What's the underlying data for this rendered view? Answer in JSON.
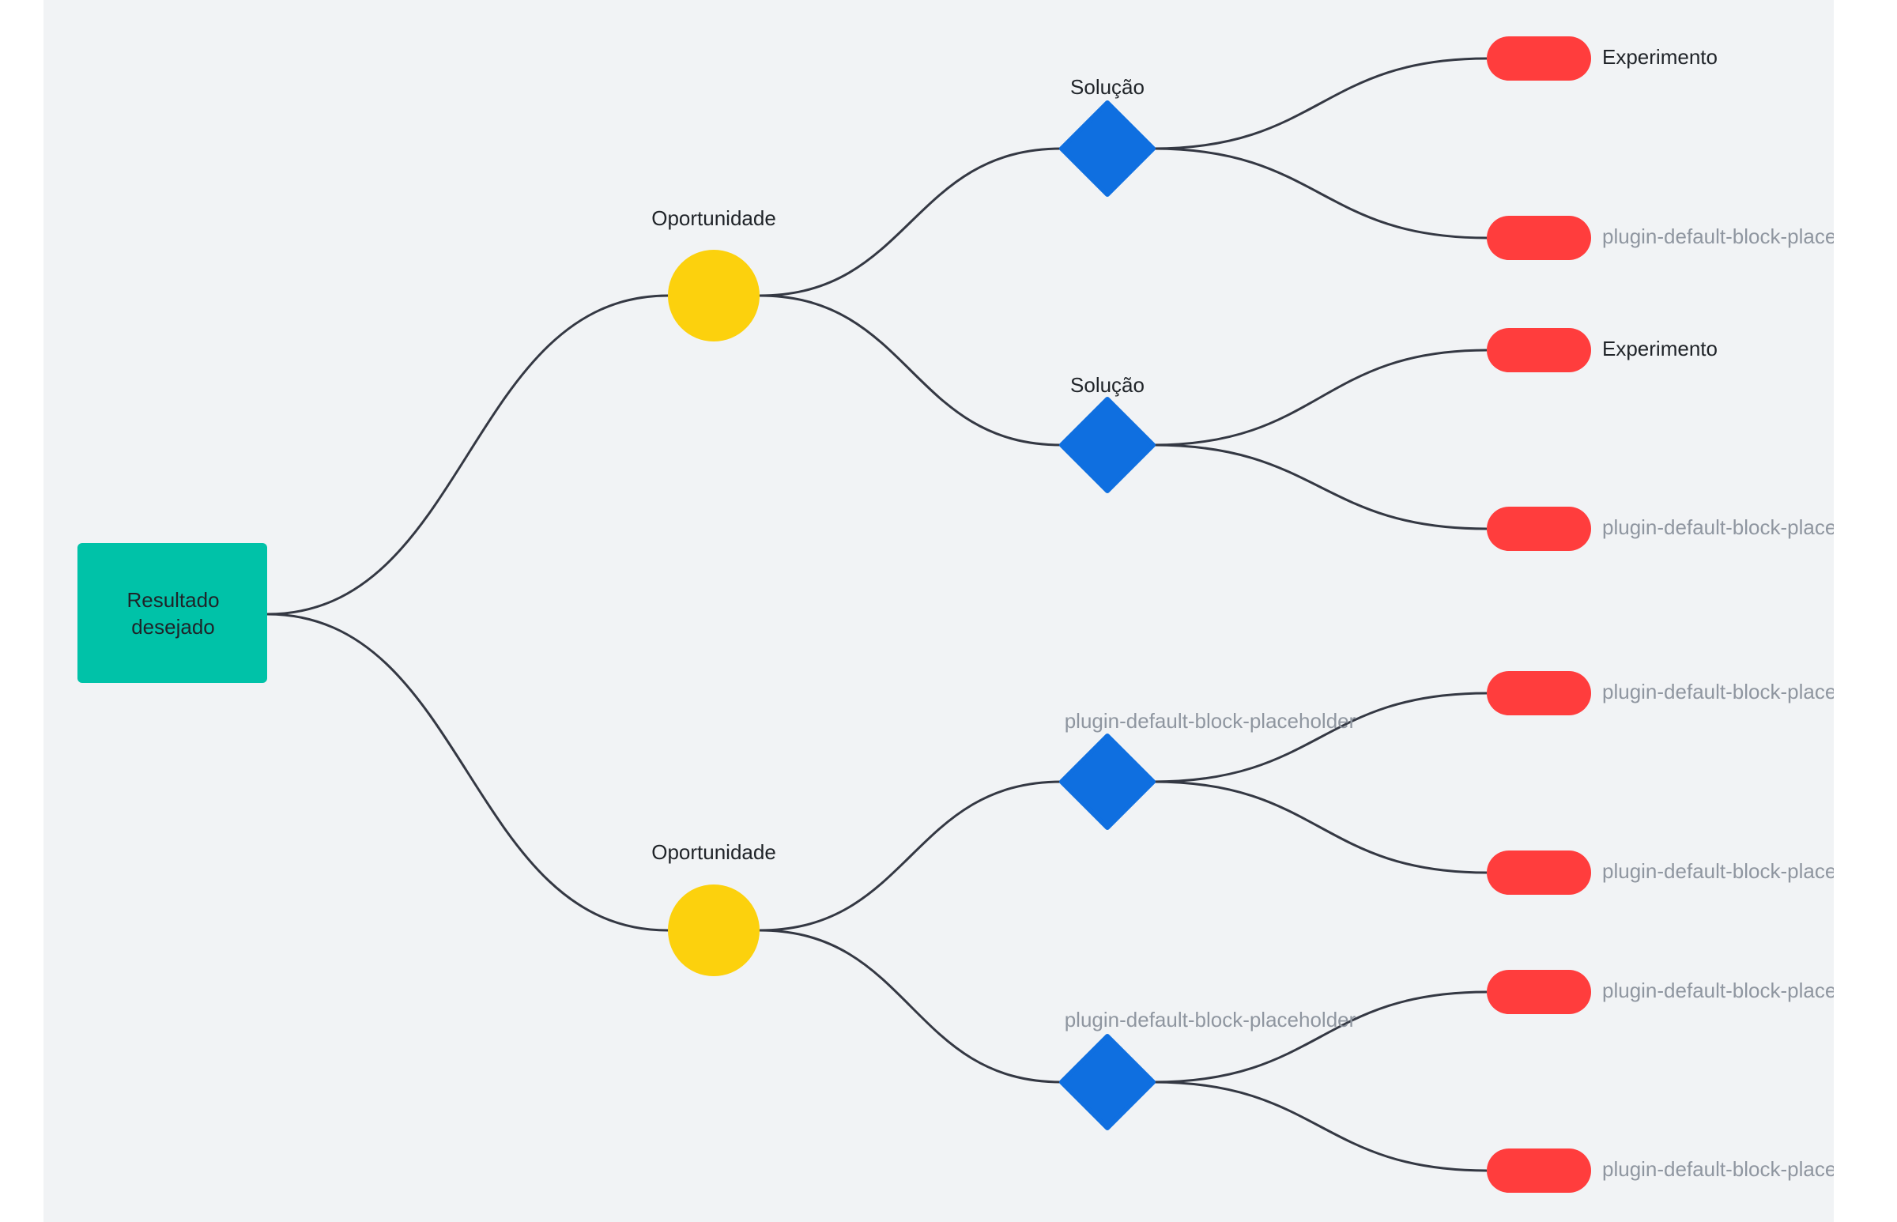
{
  "colors": {
    "root": "#00c2a8",
    "opportunity": "#fcd10d",
    "solution": "#0f6fe0",
    "experiment": "#ff3d3d",
    "edge": "#343843",
    "placeholder": "#8f96a0"
  },
  "root": {
    "lines": [
      "Resultado",
      "desejado"
    ]
  },
  "opportunities": [
    {
      "label": "Oportunidade",
      "placeholder": false,
      "solutions": [
        {
          "label": "Solução",
          "placeholder": false,
          "experiments": [
            {
              "label": "Experimento",
              "placeholder": false
            },
            {
              "label": "plugin-default-block-placeholder",
              "placeholder": true
            }
          ]
        },
        {
          "label": "Solução",
          "placeholder": false,
          "experiments": [
            {
              "label": "Experimento",
              "placeholder": false
            },
            {
              "label": "plugin-default-block-placeholder",
              "placeholder": true
            }
          ]
        }
      ]
    },
    {
      "label": "Oportunidade",
      "placeholder": false,
      "solutions": [
        {
          "label": "plugin-default-block-placeholder",
          "placeholder": true,
          "experiments": [
            {
              "label": "plugin-default-block-placeholder",
              "placeholder": true
            },
            {
              "label": "plugin-default-block-placeholder",
              "placeholder": true
            }
          ]
        },
        {
          "label": "plugin-default-block-placeholder",
          "placeholder": true,
          "experiments": [
            {
              "label": "plugin-default-block-placeholder",
              "placeholder": true
            },
            {
              "label": "plugin-default-block-placeholder",
              "placeholder": true
            }
          ]
        }
      ]
    }
  ]
}
